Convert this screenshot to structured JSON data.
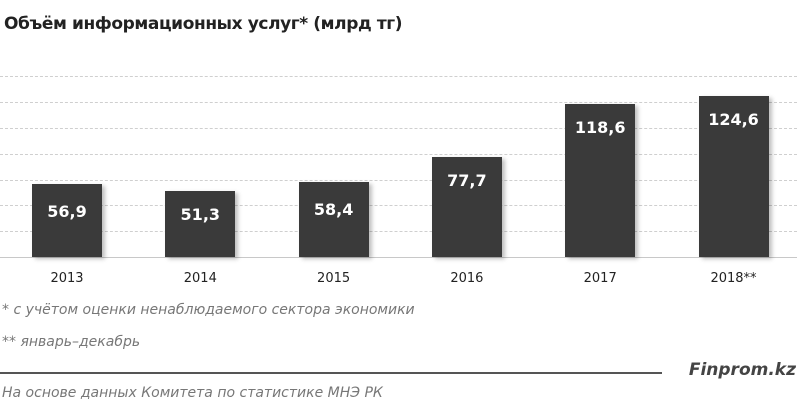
{
  "header": {
    "title": "Объём информационных услуг*  (млрд тг)"
  },
  "chart_data": {
    "type": "bar",
    "title": "Объём информационных услуг* (млрд тг)",
    "xlabel": "",
    "ylabel": "млрд тг",
    "categories": [
      "2013",
      "2014",
      "2015",
      "2016",
      "2017",
      "2018**"
    ],
    "values": [
      56.9,
      51.3,
      58.4,
      77.7,
      118.6,
      124.6
    ],
    "value_labels": [
      "56,9",
      "51,3",
      "58,4",
      "77,7",
      "118,6",
      "124,6"
    ],
    "ylim": [
      0,
      140
    ],
    "grid": true,
    "grid_values": [
      20,
      40,
      60,
      80,
      100,
      120,
      140
    ],
    "bar_color": "#3a3a3a",
    "label_color": "#ffffff",
    "legend": null
  },
  "footnotes": {
    "note1": "* с учётом оценки ненаблюдаемого сектора экономики",
    "note2": "** январь–декабрь"
  },
  "footer": {
    "brand": "Finprom.kz",
    "source": "На основе данных Комитета по статистике МНЭ РК"
  }
}
